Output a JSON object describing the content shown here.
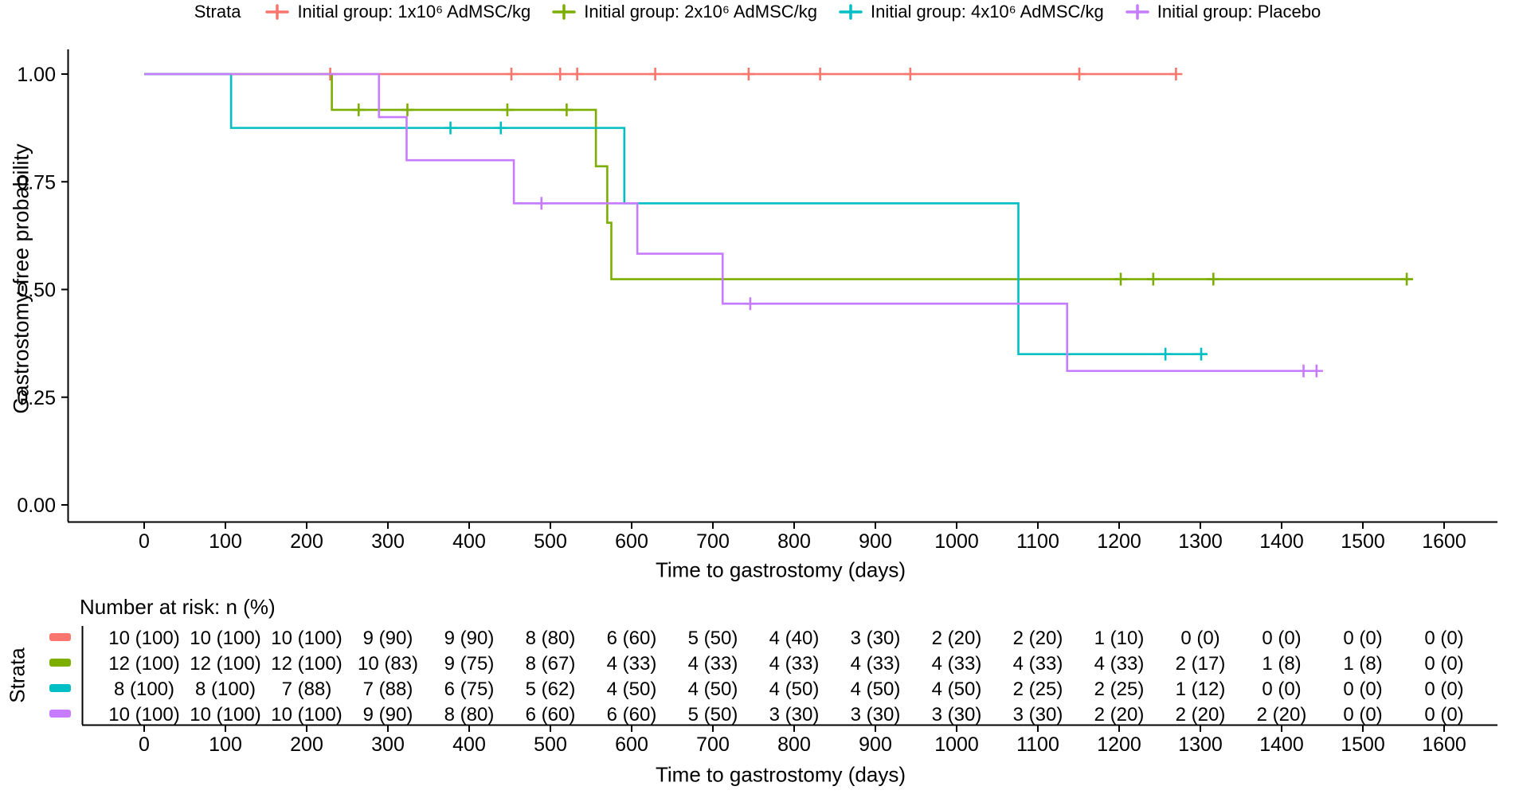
{
  "legend": {
    "title": "Strata",
    "items": [
      {
        "label": "Initial group: 1x10⁶ AdMSC/kg",
        "color": "#F8766D"
      },
      {
        "label": "Initial group: 2x10⁶ AdMSC/kg",
        "color": "#7CAE00"
      },
      {
        "label": "Initial group: 4x10⁶ AdMSC/kg",
        "color": "#00BFC4"
      },
      {
        "label": "Initial group: Placebo",
        "color": "#C77CFF"
      }
    ]
  },
  "chart_data": {
    "type": "line",
    "subtype": "kaplan-meier-step",
    "title": "",
    "xlabel": "Time to gastrostomy (days)",
    "ylabel": "Gastrostomy-free probability",
    "xlim": [
      0,
      1600
    ],
    "ylim": [
      0,
      1
    ],
    "grid": false,
    "legend_position": "top",
    "x_ticks": [
      0,
      100,
      200,
      300,
      400,
      500,
      600,
      700,
      800,
      900,
      1000,
      1100,
      1200,
      1300,
      1400,
      1500,
      1600
    ],
    "y_ticks": [
      {
        "value": 1.0,
        "label": "1.00"
      },
      {
        "value": 0.75,
        "label": "0.75"
      },
      {
        "value": 0.5,
        "label": "0.50"
      },
      {
        "value": 0.25,
        "label": "0.25"
      },
      {
        "value": 0.0,
        "label": "0.00"
      }
    ],
    "series": [
      {
        "name": "Initial group: 1x10⁶ AdMSC/kg",
        "color": "#F8766D",
        "steps": [
          [
            0,
            1.0
          ],
          [
            1270,
            1.0
          ]
        ],
        "censors": [
          [
            229,
            1.0
          ],
          [
            452,
            1.0
          ],
          [
            512,
            1.0
          ],
          [
            533,
            1.0
          ],
          [
            629,
            1.0
          ],
          [
            744,
            1.0
          ],
          [
            832,
            1.0
          ],
          [
            943,
            1.0
          ],
          [
            1151,
            1.0
          ],
          [
            1270,
            1.0
          ]
        ]
      },
      {
        "name": "Initial group: 2x10⁶ AdMSC/kg",
        "color": "#7CAE00",
        "steps": [
          [
            0,
            1.0
          ],
          [
            231,
            1.0
          ],
          [
            231,
            0.917
          ],
          [
            556,
            0.917
          ],
          [
            556,
            0.786
          ],
          [
            570,
            0.786
          ],
          [
            570,
            0.655
          ],
          [
            575,
            0.655
          ],
          [
            575,
            0.524
          ],
          [
            1561,
            0.524
          ]
        ],
        "censors": [
          [
            264,
            0.917
          ],
          [
            324,
            0.917
          ],
          [
            447,
            0.917
          ],
          [
            520,
            0.917
          ],
          [
            1202,
            0.524
          ],
          [
            1242,
            0.524
          ],
          [
            1316,
            0.524
          ],
          [
            1554,
            0.524
          ]
        ]
      },
      {
        "name": "Initial group: 4x10⁶ AdMSC/kg",
        "color": "#00BFC4",
        "steps": [
          [
            0,
            1.0
          ],
          [
            107,
            1.0
          ],
          [
            107,
            0.875
          ],
          [
            591,
            0.875
          ],
          [
            591,
            0.7
          ],
          [
            1076,
            0.7
          ],
          [
            1076,
            0.35
          ],
          [
            1308,
            0.35
          ]
        ],
        "censors": [
          [
            377,
            0.875
          ],
          [
            439,
            0.875
          ],
          [
            1257,
            0.35
          ],
          [
            1301,
            0.35
          ]
        ]
      },
      {
        "name": "Initial group: Placebo",
        "color": "#C77CFF",
        "steps": [
          [
            0,
            1.0
          ],
          [
            289,
            1.0
          ],
          [
            289,
            0.9
          ],
          [
            323,
            0.9
          ],
          [
            323,
            0.8
          ],
          [
            455,
            0.8
          ],
          [
            455,
            0.7
          ],
          [
            607,
            0.7
          ],
          [
            607,
            0.583
          ],
          [
            712,
            0.583
          ],
          [
            712,
            0.467
          ],
          [
            1136,
            0.467
          ],
          [
            1136,
            0.311
          ],
          [
            1450,
            0.311
          ]
        ],
        "censors": [
          [
            489,
            0.7
          ],
          [
            746,
            0.467
          ],
          [
            1427,
            0.311
          ],
          [
            1443,
            0.311
          ]
        ]
      }
    ]
  },
  "risk_table": {
    "title": "Number at risk: n (%)",
    "strata_label": "Strata",
    "xlabel": "Time to gastrostomy (days)",
    "x_ticks": [
      0,
      100,
      200,
      300,
      400,
      500,
      600,
      700,
      800,
      900,
      1000,
      1100,
      1200,
      1300,
      1400,
      1500,
      1600
    ],
    "rows": [
      {
        "color": "#F8766D",
        "values": [
          "10 (100)",
          "10 (100)",
          "10 (100)",
          "9 (90)",
          "9 (90)",
          "8 (80)",
          "6 (60)",
          "5 (50)",
          "4 (40)",
          "3 (30)",
          "2 (20)",
          "2 (20)",
          "1 (10)",
          "0 (0)",
          "0 (0)",
          "0 (0)",
          "0 (0)"
        ]
      },
      {
        "color": "#7CAE00",
        "values": [
          "12 (100)",
          "12 (100)",
          "12 (100)",
          "10 (83)",
          "9 (75)",
          "8 (67)",
          "4 (33)",
          "4 (33)",
          "4 (33)",
          "4 (33)",
          "4 (33)",
          "4 (33)",
          "4 (33)",
          "2 (17)",
          "1 (8)",
          "1 (8)",
          "0 (0)"
        ]
      },
      {
        "color": "#00BFC4",
        "values": [
          "8 (100)",
          "8 (100)",
          "7 (88)",
          "7 (88)",
          "6 (75)",
          "5 (62)",
          "4 (50)",
          "4 (50)",
          "4 (50)",
          "4 (50)",
          "4 (50)",
          "2 (25)",
          "2 (25)",
          "1 (12)",
          "0 (0)",
          "0 (0)",
          "0 (0)"
        ]
      },
      {
        "color": "#C77CFF",
        "values": [
          "10 (100)",
          "10 (100)",
          "10 (100)",
          "9 (90)",
          "8 (80)",
          "6 (60)",
          "6 (60)",
          "5 (50)",
          "3 (30)",
          "3 (30)",
          "3 (30)",
          "3 (30)",
          "2 (20)",
          "2 (20)",
          "2 (20)",
          "0 (0)",
          "0 (0)"
        ]
      }
    ]
  }
}
